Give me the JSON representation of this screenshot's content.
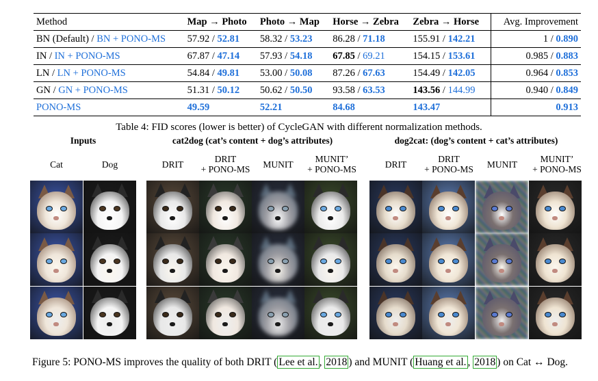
{
  "table": {
    "headers": [
      "Method",
      "Map → Photo",
      "Photo → Map",
      "Horse → Zebra",
      "Zebra → Horse",
      "Avg. Improvement"
    ],
    "rows": [
      {
        "method_base": "BN (Default)",
        "method_sep": " / ",
        "method_pono": "BN + PONO-MS",
        "cells": [
          {
            "a": "57.92",
            "b": "52.81"
          },
          {
            "a": "58.32",
            "b": "53.23"
          },
          {
            "a": "86.28",
            "b": "71.18"
          },
          {
            "a": "155.91",
            "b": "142.21"
          }
        ],
        "avg_a": "1",
        "avg_b": "0.890"
      },
      {
        "method_base": "IN",
        "method_sep": " / ",
        "method_pono": "IN + PONO-MS",
        "cells": [
          {
            "a": "67.87",
            "b": "47.14"
          },
          {
            "a": "57.93",
            "b": "54.18"
          },
          {
            "a": "67.85",
            "b": "69.21"
          },
          {
            "a": "154.15",
            "b": "153.61"
          }
        ],
        "avg_a": "0.985",
        "avg_b": "0.883"
      },
      {
        "method_base": "LN",
        "method_sep": " / ",
        "method_pono": "LN + PONO-MS",
        "cells": [
          {
            "a": "54.84",
            "b": "49.81"
          },
          {
            "a": "53.00",
            "b": "50.08"
          },
          {
            "a": "87.26",
            "b": "67.63"
          },
          {
            "a": "154.49",
            "b": "142.05"
          }
        ],
        "avg_a": "0.964",
        "avg_b": "0.853"
      },
      {
        "method_base": "GN",
        "method_sep": " / ",
        "method_pono": "GN + PONO-MS",
        "cells": [
          {
            "a": "51.31",
            "b": "50.12"
          },
          {
            "a": "50.62",
            "b": "50.50"
          },
          {
            "a": "93.58",
            "b": "63.53"
          },
          {
            "a": "143.56",
            "b": "144.99"
          }
        ],
        "avg_a": "0.940",
        "avg_b": "0.849"
      }
    ],
    "final_row": {
      "method": "PONO-MS",
      "values": [
        "49.59",
        "52.21",
        "84.68",
        "143.47"
      ],
      "avg": "0.913"
    },
    "caption": "Table 4: FID scores (lower is better) of CycleGAN with different normalization methods."
  },
  "figure": {
    "group_inputs": "Inputs",
    "group_cat2dog": "cat2dog (cat’s content + dog’s attributes)",
    "group_dog2cat": "dog2cat: (dog’s content + cat’s attributes)",
    "col_cat": "Cat",
    "col_dog": "Dog",
    "col_drit": "DRIT",
    "col_drit_pono_1": "DRIT",
    "col_drit_pono_2": "+ PONO-MS",
    "col_munit": "MUNIT",
    "col_munit_pono_1": "MUNIT’",
    "col_munit_pono_2": "+ PONO-MS",
    "caption_part1": "Figure 5:  PONO-MS improves the quality of both DRIT (",
    "cite1_author": "Lee et al.",
    "cite_sep1": ", ",
    "cite1_year": "2018",
    "caption_part2": ") and MUNIT (",
    "cite2_author": "Huang et al.",
    "cite_sep2": ", ",
    "cite2_year": "2018",
    "caption_part3": ") on Cat ↔ Dog."
  },
  "colors": {
    "accent_blue": "#1e6fd9",
    "citation_box": "#33aa33"
  }
}
